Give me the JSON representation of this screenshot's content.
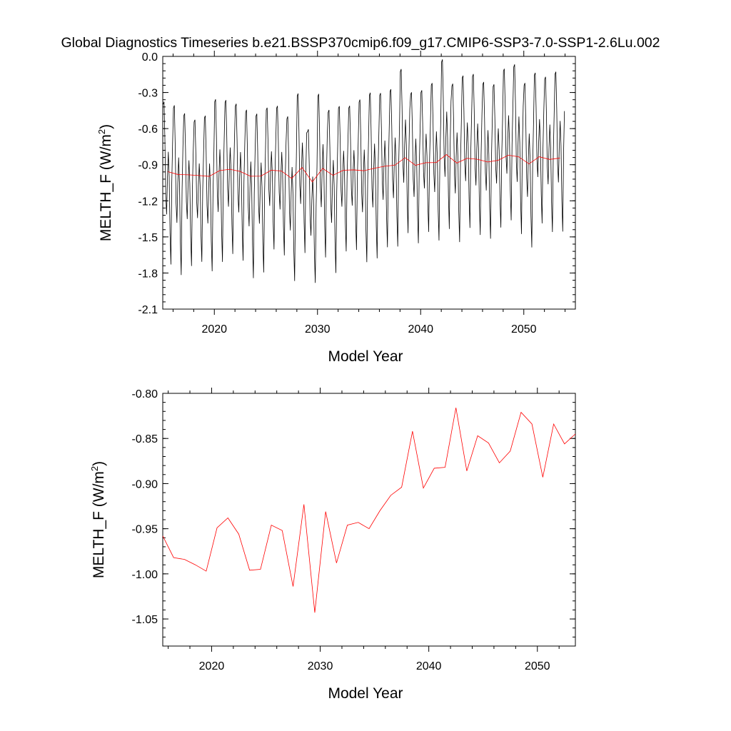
{
  "title": "Global Diagnostics Timeseries b.e21.BSSP370cmip6.f09_g17.CMIP6-SSP3-7.0-SSP1-2.6Lu.002",
  "chart_data": [
    {
      "type": "line",
      "xlabel": "Model Year",
      "ylabel_main": "MELTH_F (W/m",
      "ylabel_sup": "2",
      "ylabel_close": ")",
      "xlim": [
        2015,
        2055
      ],
      "ylim": [
        -2.1,
        0.0
      ],
      "x_ticks": [
        2020,
        2030,
        2040,
        2050
      ],
      "y_ticks": [
        0.0,
        -0.3,
        -0.6,
        -0.9,
        -1.2,
        -1.5,
        -1.8,
        -2.1
      ],
      "y_tick_labels": [
        "0.0",
        "-0.3",
        "-0.6",
        "-0.9",
        "-1.2",
        "-1.5",
        "-1.8",
        "-2.1"
      ],
      "series": [
        {
          "color": "#000000",
          "monthly_start": 2015.04,
          "monthly_step": 0.0833,
          "monthly_pattern": [
            -0.42,
            -0.4,
            -0.7,
            -1.15,
            -1.3,
            -1.0,
            -0.8,
            -1.0,
            -1.45,
            -1.7,
            -1.05,
            -0.72
          ],
          "yearly_means": [
            -0.958,
            -0.982,
            -0.984,
            -0.99,
            -0.997,
            -0.949,
            -0.938,
            -0.956,
            -0.996,
            -0.995,
            -0.946,
            -0.952,
            -1.014,
            -0.923,
            -1.043,
            -0.931,
            -0.988,
            -0.946,
            -0.943,
            -0.95,
            -0.93,
            -0.913,
            -0.904,
            -0.842,
            -0.905,
            -0.883,
            -0.882,
            -0.816,
            -0.886,
            -0.847,
            -0.855,
            -0.877,
            -0.864,
            -0.821,
            -0.834,
            -0.893,
            -0.834,
            -0.856,
            -0.845
          ]
        },
        {
          "color": "#ff0000",
          "x": [
            2015.5,
            2016.5,
            2017.5,
            2018.5,
            2019.5,
            2020.5,
            2021.5,
            2022.5,
            2023.5,
            2024.5,
            2025.5,
            2026.5,
            2027.5,
            2028.5,
            2029.5,
            2030.5,
            2031.5,
            2032.5,
            2033.5,
            2034.5,
            2035.5,
            2036.5,
            2037.5,
            2038.5,
            2039.5,
            2040.5,
            2041.5,
            2042.5,
            2043.5,
            2044.5,
            2045.5,
            2046.5,
            2047.5,
            2048.5,
            2049.5,
            2050.5,
            2051.5,
            2052.5,
            2053.5
          ],
          "y": [
            -0.958,
            -0.982,
            -0.984,
            -0.99,
            -0.997,
            -0.949,
            -0.938,
            -0.956,
            -0.996,
            -0.995,
            -0.946,
            -0.952,
            -1.014,
            -0.923,
            -1.043,
            -0.931,
            -0.988,
            -0.946,
            -0.943,
            -0.95,
            -0.93,
            -0.913,
            -0.904,
            -0.842,
            -0.905,
            -0.883,
            -0.882,
            -0.816,
            -0.886,
            -0.847,
            -0.855,
            -0.877,
            -0.864,
            -0.821,
            -0.834,
            -0.893,
            -0.834,
            -0.856,
            -0.845
          ]
        }
      ]
    },
    {
      "type": "line",
      "xlabel": "Model Year",
      "ylabel_main": "MELTH_F (W/m",
      "ylabel_sup": "2",
      "ylabel_close": ")",
      "xlim": [
        2015.5,
        2053.5
      ],
      "ylim": [
        -1.08,
        -0.8
      ],
      "x_ticks": [
        2020,
        2030,
        2040,
        2050
      ],
      "y_ticks": [
        -0.8,
        -0.85,
        -0.9,
        -0.95,
        -1.0,
        -1.05
      ],
      "y_tick_labels": [
        "-0.80",
        "-0.85",
        "-0.90",
        "-0.95",
        "-1.00",
        "-1.05"
      ],
      "series": [
        {
          "color": "#ff0000",
          "x": [
            2015.5,
            2016.5,
            2017.5,
            2018.5,
            2019.5,
            2020.5,
            2021.5,
            2022.5,
            2023.5,
            2024.5,
            2025.5,
            2026.5,
            2027.5,
            2028.5,
            2029.5,
            2030.5,
            2031.5,
            2032.5,
            2033.5,
            2034.5,
            2035.5,
            2036.5,
            2037.5,
            2038.5,
            2039.5,
            2040.5,
            2041.5,
            2042.5,
            2043.5,
            2044.5,
            2045.5,
            2046.5,
            2047.5,
            2048.5,
            2049.5,
            2050.5,
            2051.5,
            2052.5,
            2053.5
          ],
          "y": [
            -0.958,
            -0.982,
            -0.984,
            -0.99,
            -0.997,
            -0.949,
            -0.938,
            -0.956,
            -0.996,
            -0.995,
            -0.946,
            -0.952,
            -1.014,
            -0.923,
            -1.043,
            -0.931,
            -0.988,
            -0.946,
            -0.943,
            -0.95,
            -0.93,
            -0.913,
            -0.904,
            -0.842,
            -0.905,
            -0.883,
            -0.882,
            -0.816,
            -0.886,
            -0.847,
            -0.855,
            -0.877,
            -0.864,
            -0.821,
            -0.834,
            -0.893,
            -0.834,
            -0.856,
            -0.845
          ]
        }
      ]
    }
  ]
}
